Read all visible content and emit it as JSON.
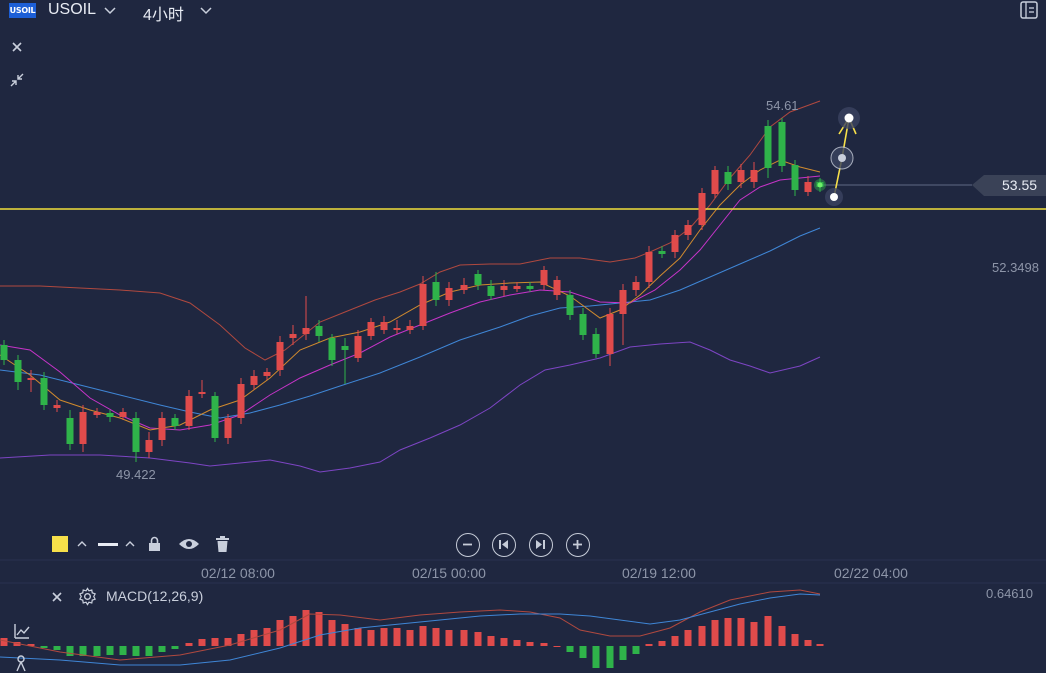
{
  "header": {
    "logo_text": "USOIL",
    "symbol": "USOIL",
    "interval": "4小时"
  },
  "price_axis": {
    "labels": [
      "53.55",
      "52.3498",
      "0.64610"
    ],
    "current_price": "53.55",
    "mid_label": "52.3498"
  },
  "annotations": {
    "high": "54.61",
    "low": "49.422"
  },
  "time_axis": {
    "labels": [
      "02/12 08:00",
      "02/15 00:00",
      "02/19 12:00",
      "02/22 04:00"
    ]
  },
  "indicator": {
    "name": "MACD(12,26,9)",
    "value": "0.64610"
  },
  "colors": {
    "background": "#1f2740",
    "up": "#2fb34a",
    "down": "#e04b4b",
    "horizontal_line": "#f1df3a",
    "drawing_color": "#f7e04a"
  },
  "icons": [
    "close-icon",
    "collapse-icon",
    "chevron-down-icon",
    "lock-icon",
    "eye-icon",
    "trash-icon",
    "zoom-out-icon",
    "step-back-icon",
    "step-forward-icon",
    "zoom-in-icon",
    "settings-icon",
    "layout-icon"
  ]
}
